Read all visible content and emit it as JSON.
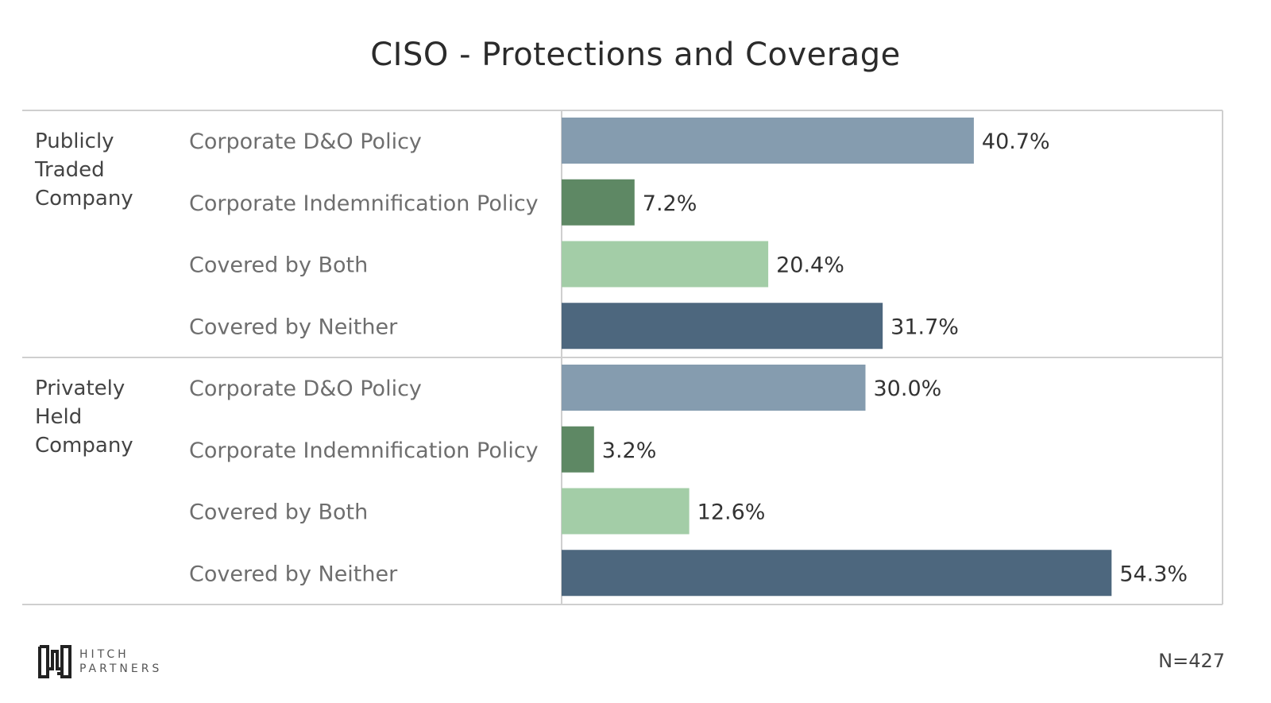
{
  "title": "CISO - Protections and Coverage",
  "footer": {
    "n_label": "N=427"
  },
  "logo": {
    "line1": "HITCH",
    "line2": "PARTNERS"
  },
  "colors": {
    "Corporate D&O Policy": "#859caf",
    "Corporate Indemnification Policy": "#5e8864",
    "Covered by Both": "#a3cda7",
    "Covered by Neither": "#4d677e"
  },
  "chart_data": {
    "type": "bar",
    "orientation": "horizontal",
    "title": "CISO - Protections and Coverage",
    "xlim": [
      0,
      60
    ],
    "grid": false,
    "groups": [
      {
        "name": "Publicly Traded Company",
        "categories": [
          "Corporate D&O Policy",
          "Corporate Indemnification Policy",
          "Covered by Both",
          "Covered by Neither"
        ],
        "values": [
          40.7,
          7.2,
          20.4,
          31.7
        ],
        "labels": [
          "40.7%",
          "7.2%",
          "20.4%",
          "31.7%"
        ]
      },
      {
        "name": "Privately Held Company",
        "categories": [
          "Corporate D&O Policy",
          "Corporate Indemnification Policy",
          "Covered by Both",
          "Covered by Neither"
        ],
        "values": [
          30.0,
          3.2,
          12.6,
          54.3
        ],
        "labels": [
          "30.0%",
          "3.2%",
          "12.6%",
          "54.3%"
        ]
      }
    ]
  }
}
